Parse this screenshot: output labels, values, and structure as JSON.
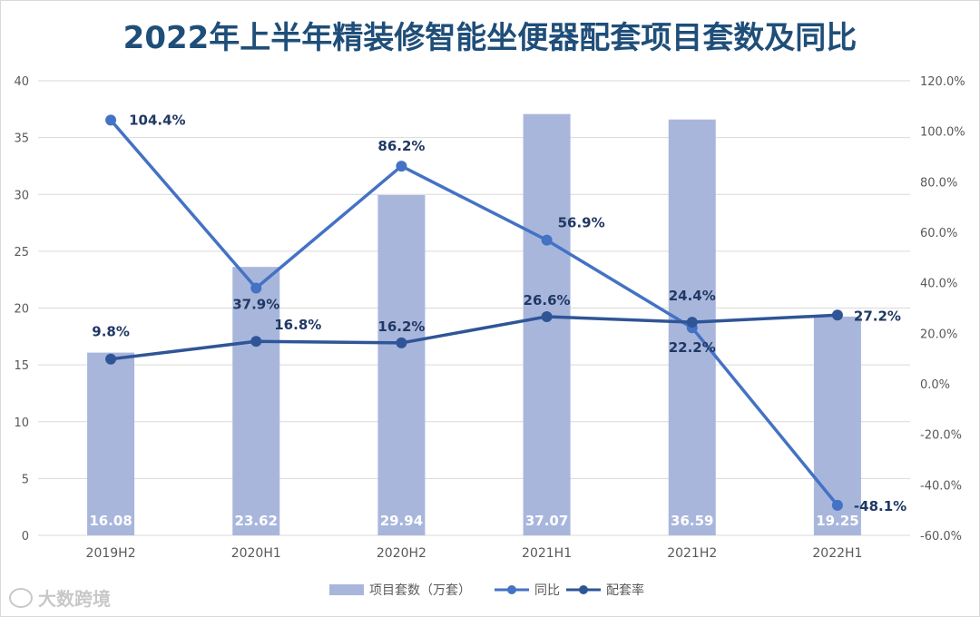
{
  "title": "2022年上半年精装修智能坐便器配套项目套数及同比",
  "watermark": "大数跨境",
  "colors": {
    "bar": "#a9b6dc",
    "yoy_line": "#4472c4",
    "rate_line": "#2f5597",
    "label_dark": "#203864",
    "axis_text": "#595959",
    "grid": "#d9d9d9"
  },
  "chart_data": {
    "type": "bar+line",
    "categories": [
      "2019H2",
      "2020H1",
      "2020H2",
      "2021H1",
      "2021H2",
      "2022H1"
    ],
    "left_axis": {
      "min": 0,
      "max": 40,
      "ticks": [
        "0",
        "5",
        "10",
        "15",
        "20",
        "25",
        "30",
        "35",
        "40"
      ]
    },
    "right_axis": {
      "min": -60,
      "max": 120,
      "ticks": [
        "-60.0%",
        "-40.0%",
        "-20.0%",
        "0.0%",
        "20.0%",
        "40.0%",
        "60.0%",
        "80.0%",
        "100.0%",
        "120.0%"
      ]
    },
    "series": [
      {
        "name": "项目套数（万套）",
        "type": "bar",
        "axis": "left",
        "values": [
          16.08,
          23.62,
          29.94,
          37.07,
          36.59,
          19.25
        ],
        "labels": [
          "16.08",
          "23.62",
          "29.94",
          "37.07",
          "36.59",
          "19.25"
        ]
      },
      {
        "name": "同比",
        "type": "line",
        "axis": "right",
        "values": [
          104.4,
          37.9,
          86.2,
          56.9,
          22.2,
          -48.1
        ],
        "labels": [
          "104.4%",
          "37.9%",
          "86.2%",
          "56.9%",
          "22.2%",
          "-48.1%"
        ]
      },
      {
        "name": "配套率",
        "type": "line",
        "axis": "right",
        "values": [
          9.8,
          16.8,
          16.2,
          26.6,
          24.4,
          27.2
        ],
        "labels": [
          "9.8%",
          "16.8%",
          "16.2%",
          "26.6%",
          "24.4%",
          "27.2%"
        ]
      }
    ],
    "legend": [
      "项目套数（万套）",
      "同比",
      "配套率"
    ],
    "legend_position": "bottom"
  }
}
